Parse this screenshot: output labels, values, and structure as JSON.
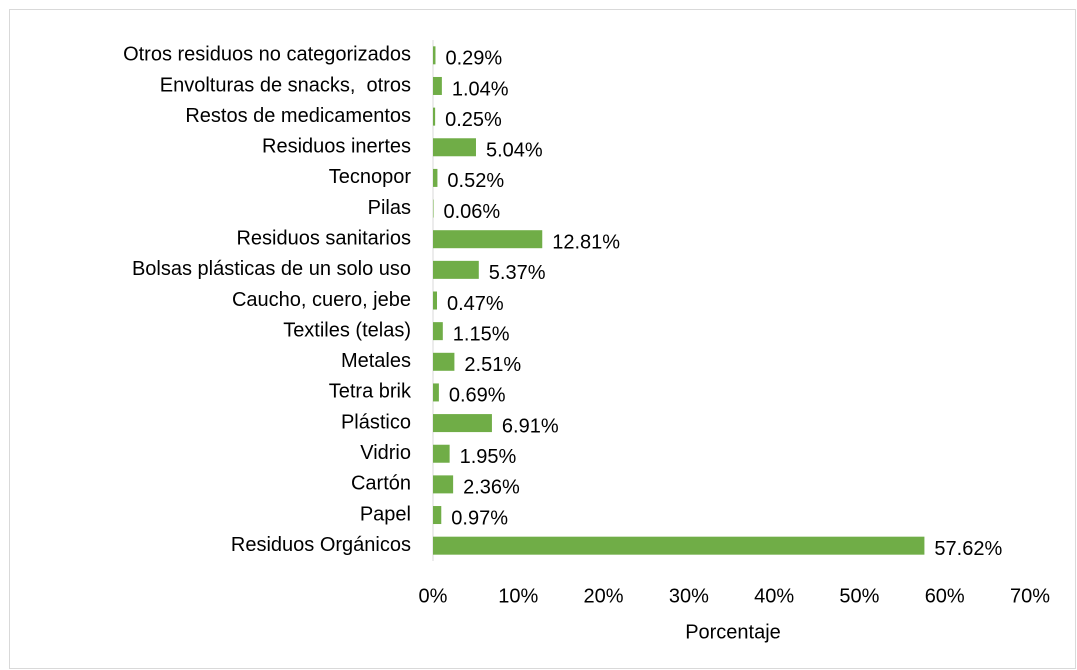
{
  "chart_data": {
    "type": "bar",
    "orientation": "horizontal",
    "categories": [
      "Otros residuos no categorizados",
      "Envolturas de snacks,  otros",
      "Restos de medicamentos",
      "Residuos inertes",
      "Tecnopor",
      "Pilas",
      "Residuos sanitarios",
      "Bolsas plásticas de un solo uso",
      "Caucho, cuero, jebe",
      "Textiles (telas)",
      "Metales",
      "Tetra brik",
      "Plástico",
      "Vidrio",
      "Cartón",
      "Papel",
      "Residuos Orgánicos"
    ],
    "values": [
      0.29,
      1.04,
      0.25,
      5.04,
      0.52,
      0.06,
      12.81,
      5.37,
      0.47,
      1.15,
      2.51,
      0.69,
      6.91,
      1.95,
      2.36,
      0.97,
      57.62
    ],
    "value_labels": [
      "0.29%",
      "1.04%",
      "0.25%",
      "5.04%",
      "0.52%",
      "0.06%",
      "12.81%",
      "5.37%",
      "0.47%",
      "1.15%",
      "2.51%",
      "0.69%",
      "6.91%",
      "1.95%",
      "2.36%",
      "0.97%",
      "57.62%"
    ],
    "color": "#70ad47",
    "xlabel": "Porcentaje",
    "xlim": [
      0,
      70
    ],
    "xticks": [
      {
        "value": 0,
        "label": "0%"
      },
      {
        "value": 10,
        "label": "10%"
      },
      {
        "value": 20,
        "label": "20%"
      },
      {
        "value": 30,
        "label": "30%"
      },
      {
        "value": 40,
        "label": "40%"
      },
      {
        "value": 50,
        "label": "50%"
      },
      {
        "value": 60,
        "label": "60%"
      },
      {
        "value": 70,
        "label": "70%"
      }
    ],
    "grid": false
  }
}
